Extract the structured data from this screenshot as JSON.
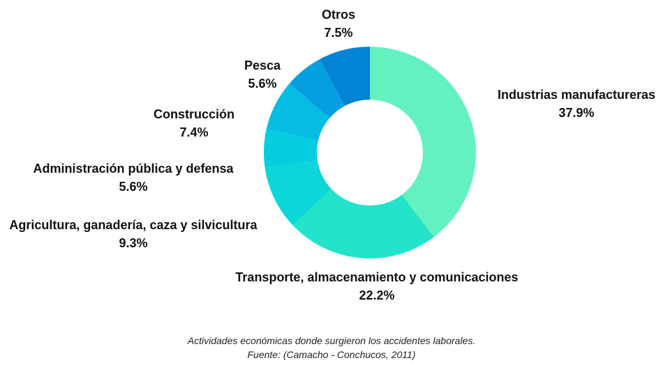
{
  "chart_data": {
    "type": "pie",
    "donut": true,
    "slices": [
      {
        "label": "Industrias manufactureras",
        "value": 37.9,
        "value_label": "37.9%",
        "color": "#63f2bf"
      },
      {
        "label": "Transporte, almacenamiento y comunicaciones",
        "value": 22.2,
        "value_label": "22.2%",
        "color": "#23e4cb"
      },
      {
        "label": "Agricultura, ganadería, caza y silvicultura",
        "value": 9.3,
        "value_label": "9.3%",
        "color": "#0bd6d8"
      },
      {
        "label": "Administración pública y defensa",
        "value": 5.6,
        "value_label": "5.6%",
        "color": "#05cde0"
      },
      {
        "label": "Construcción",
        "value": 7.4,
        "value_label": "7.4%",
        "color": "#05bde3"
      },
      {
        "label": "Pesca",
        "value": 5.6,
        "value_label": "5.6%",
        "color": "#039fe0"
      },
      {
        "label": "Otros",
        "value": 7.5,
        "value_label": "7.5%",
        "color": "#0283d6"
      }
    ]
  },
  "caption": {
    "line1": "Actividades económicas donde surgieron los accidentes laborales.",
    "line2": "Fuente: (Camacho - Conchucos, 2011)"
  }
}
